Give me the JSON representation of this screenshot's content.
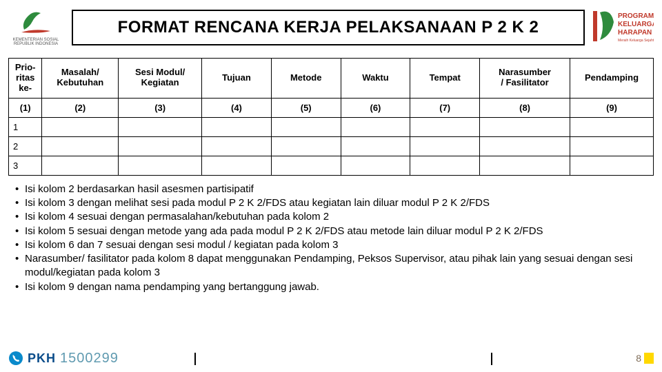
{
  "header": {
    "title": "FORMAT RENCANA KERJA PELAKSANAAN P 2 K 2",
    "left_logo_caption": "KEMENTERIAN SOSIAL\nREPUBLIK INDONESIA",
    "left_logo_colors": {
      "leaf": "#2e8b3d",
      "swoosh": "#c0392b"
    },
    "right_logo_lines": [
      "PROGRAM",
      "KELUARGA",
      "HARAPAN"
    ],
    "right_logo_tagline": "Meraih Keluarga Sejahtera",
    "right_logo_colors": {
      "bar": "#c0392b",
      "shape": "#2e8b3d",
      "text": "#c0392b"
    }
  },
  "table": {
    "columns": [
      {
        "label": "Prio-\nritas\nke-",
        "num": "(1)",
        "class": "col1"
      },
      {
        "label": "Masalah/\nKebutuhan",
        "num": "(2)",
        "class": "col2"
      },
      {
        "label": "Sesi Modul/\nKegiatan",
        "num": "(3)",
        "class": "col3"
      },
      {
        "label": "Tujuan",
        "num": "(4)",
        "class": "col4"
      },
      {
        "label": "Metode",
        "num": "(5)",
        "class": "col5"
      },
      {
        "label": "Waktu",
        "num": "(6)",
        "class": "col6"
      },
      {
        "label": "Tempat",
        "num": "(7)",
        "class": "col7"
      },
      {
        "label": "Narasumber\n/ Fasilitator",
        "num": "(8)",
        "class": "col8"
      },
      {
        "label": "Pendamping",
        "num": "(9)",
        "class": "col9"
      }
    ],
    "rows": [
      {
        "n": "1"
      },
      {
        "n": "2"
      },
      {
        "n": "3"
      }
    ]
  },
  "notes": [
    "Isi kolom 2 berdasarkan hasil asesmen partisipatif",
    "Isi kolom 3 dengan melihat sesi pada modul P 2 K 2/FDS atau kegiatan lain diluar modul P 2 K 2/FDS",
    "Isi kolom 4 sesuai dengan permasalahan/kebutuhan pada kolom 2",
    "Isi kolom 5 sesuai dengan metode yang ada pada modul P 2 K 2/FDS atau metode lain diluar modul P 2 K 2/FDS",
    "Isi kolom 6 dan 7 sesuai dengan sesi modul / kegiatan pada kolom 3",
    "Narasumber/ fasilitator pada kolom 8 dapat menggunakan Pendamping, Peksos Supervisor, atau pihak lain yang sesuai dengan sesi modul/kegiatan pada kolom 3",
    "Isi kolom 9 dengan nama pendamping yang bertanggung jawab."
  ],
  "footer": {
    "brand": "PKH",
    "phone": "1500299",
    "page_number": "8",
    "brand_color": "#0a4c8a",
    "phone_color": "#5f9ab0",
    "accent_color": "#ffd800"
  }
}
